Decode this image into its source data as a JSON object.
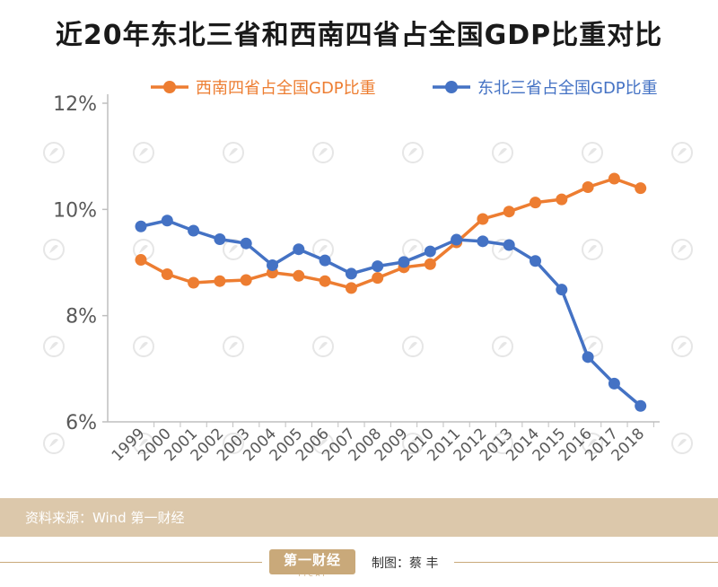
{
  "header": {
    "title": "近20年东北三省和西南四省占全国GDP比重对比"
  },
  "footer": {
    "source": "资料来源：Wind  第一财经",
    "brand": "第一财经",
    "brand_sub": "YICAI",
    "credit": "制图：蔡 丰"
  },
  "chart_data": {
    "type": "line",
    "title": "近20年东北三省和西南四省占全国GDP比重对比",
    "xlabel": "",
    "ylabel": "",
    "x": [
      "1999",
      "2000",
      "2001",
      "2002",
      "2003",
      "2004",
      "2005",
      "2006",
      "2007",
      "2008",
      "2009",
      "2010",
      "2011",
      "2012",
      "2013",
      "2014",
      "2015",
      "2016",
      "2017",
      "2018"
    ],
    "ylim": [
      6,
      12
    ],
    "yticks": [
      6,
      8,
      10,
      12
    ],
    "ytick_labels": [
      "6%",
      "8%",
      "10%",
      "12%"
    ],
    "grid": false,
    "legend_position": "top",
    "series": [
      {
        "name": "西南四省占全国GDP比重",
        "color": "#ed7d31",
        "values": [
          9.05,
          8.78,
          8.62,
          8.65,
          8.67,
          8.81,
          8.75,
          8.65,
          8.52,
          8.71,
          8.91,
          8.97,
          9.38,
          9.82,
          9.96,
          10.13,
          10.19,
          10.42,
          10.58,
          10.4
        ]
      },
      {
        "name": "东北三省占全国GDP比重",
        "color": "#4472c4",
        "values": [
          9.68,
          9.79,
          9.6,
          9.44,
          9.36,
          8.95,
          9.25,
          9.04,
          8.79,
          8.93,
          9.01,
          9.21,
          9.43,
          9.4,
          9.33,
          9.03,
          8.49,
          7.22,
          6.72,
          6.3
        ]
      }
    ]
  }
}
